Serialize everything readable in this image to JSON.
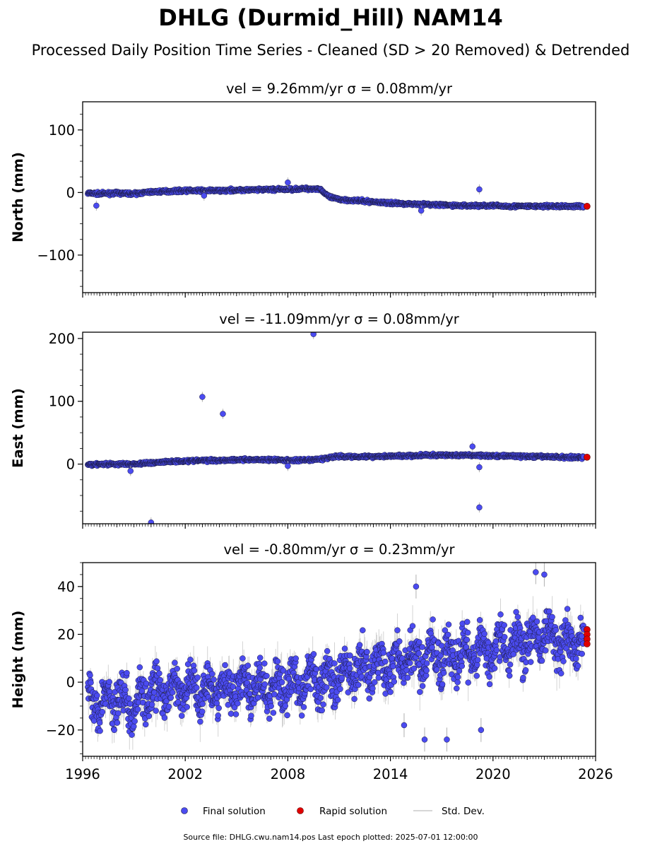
{
  "figure": {
    "title": "DHLG (Durmid_Hill) NAM14",
    "subtitle": "Processed Daily Position Time Series - Cleaned (SD > 20 Removed) & Detrended",
    "footer": "Source file: DHLG.cwu.nam14.pos  Last epoch plotted: 2025-07-01 12:00:00"
  },
  "legend": {
    "final_label": "Final solution",
    "rapid_label": "Rapid solution",
    "std_label": "Std. Dev."
  },
  "colors": {
    "final": "#4b4bf0",
    "final_edge": "#1a1a40",
    "rapid": "#e00000",
    "std": "#b0b0b0"
  },
  "chart_data": [
    {
      "type": "scatter",
      "title": "vel = 9.26mm/yr   σ = 0.08mm/yr",
      "ylabel": "North (mm)",
      "xlim": [
        1996,
        2026
      ],
      "ylim": [
        -160,
        145
      ],
      "yticks": [
        100,
        0,
        -100
      ],
      "ytick_labels": [
        "100",
        "0",
        "−100"
      ],
      "series": [
        {
          "name": "Final solution",
          "x": [
            1996.3,
            1997.0,
            1998.0,
            1999.0,
            2000.0,
            2001.0,
            2002.0,
            2003.0,
            2004.0,
            2005.0,
            2006.0,
            2007.0,
            2008.0,
            2009.0,
            2009.9,
            2010.2,
            2010.5,
            2011.0,
            2012.0,
            2013.0,
            2014.0,
            2015.0,
            2016.0,
            2017.0,
            2018.0,
            2019.0,
            2020.0,
            2021.0,
            2022.0,
            2023.0,
            2024.0,
            2025.3
          ],
          "y": [
            -1,
            -2,
            -1,
            -2,
            1,
            2,
            3,
            3,
            3,
            4,
            4,
            5,
            5,
            6,
            6,
            -3,
            -8,
            -11,
            -13,
            -15,
            -17,
            -18,
            -19,
            -20,
            -21,
            -21,
            -21,
            -22,
            -22,
            -22,
            -22,
            -22
          ]
        },
        {
          "name": "Rapid solution",
          "x": [
            2025.5
          ],
          "y": [
            -22
          ]
        }
      ],
      "outliers": {
        "x": [
          1996.8,
          2003.1,
          2008.0,
          2019.2,
          2015.8
        ],
        "y": [
          -21,
          -5,
          16,
          5,
          -29
        ]
      },
      "xticks": [
        1996,
        2002,
        2008,
        2014,
        2020,
        2026
      ],
      "xtick_labels": []
    },
    {
      "type": "scatter",
      "title": "vel = -11.09mm/yr   σ = 0.08mm/yr",
      "ylabel": "East (mm)",
      "xlim": [
        1996,
        2026
      ],
      "ylim": [
        -95,
        210
      ],
      "yticks": [
        200,
        100,
        0
      ],
      "ytick_labels": [
        "200",
        "100",
        "0"
      ],
      "series": [
        {
          "name": "Final solution",
          "x": [
            1996.3,
            1997.0,
            1998.0,
            1999.0,
            2000.0,
            2001.0,
            2002.0,
            2003.0,
            2004.0,
            2005.0,
            2006.0,
            2007.0,
            2008.0,
            2009.0,
            2010.0,
            2010.5,
            2011.0,
            2012.0,
            2013.0,
            2014.0,
            2015.0,
            2016.0,
            2017.0,
            2018.0,
            2019.0,
            2020.0,
            2021.0,
            2022.0,
            2023.0,
            2024.0,
            2025.3
          ],
          "y": [
            -1,
            0,
            0,
            0,
            2,
            4,
            5,
            6,
            6,
            7,
            7,
            7,
            6,
            6,
            8,
            11,
            12,
            12,
            12,
            13,
            13,
            14,
            14,
            14,
            14,
            13,
            13,
            12,
            12,
            11,
            11
          ]
        },
        {
          "name": "Rapid solution",
          "x": [
            2025.5
          ],
          "y": [
            11
          ]
        }
      ],
      "outliers": {
        "x": [
          1998.8,
          2000.0,
          2003.0,
          2004.2,
          2009.5,
          2019.2,
          2019.2,
          2018.8,
          2008.0
        ],
        "y": [
          -11,
          -93,
          107,
          80,
          207,
          -5,
          -69,
          28,
          -3
        ]
      },
      "xticks": [
        1996,
        2002,
        2008,
        2014,
        2020,
        2026
      ],
      "xtick_labels": []
    },
    {
      "type": "scatter",
      "title": "vel = -0.80mm/yr   σ = 0.23mm/yr",
      "ylabel": "Height (mm)",
      "xlim": [
        1996,
        2026
      ],
      "ylim": [
        -31,
        50
      ],
      "yticks": [
        40,
        20,
        0,
        -20
      ],
      "ytick_labels": [
        "40",
        "20",
        "0",
        "−20"
      ],
      "series": [
        {
          "name": "Final solution",
          "x": [
            1996.3,
            1997.0,
            1998.0,
            1999.0,
            2000.0,
            2001.0,
            2002.0,
            2003.0,
            2004.0,
            2005.0,
            2006.0,
            2007.0,
            2008.0,
            2009.0,
            2010.0,
            2011.0,
            2012.0,
            2013.0,
            2014.0,
            2015.0,
            2016.0,
            2017.0,
            2018.0,
            2019.0,
            2020.0,
            2021.0,
            2022.0,
            2023.0,
            2024.0,
            2025.3
          ],
          "y": [
            -5,
            -8,
            -6,
            -9,
            -5,
            -4,
            -3,
            -3,
            -2,
            -2,
            -2,
            -3,
            -1,
            0,
            1,
            3,
            5,
            6,
            7,
            9,
            11,
            10,
            11,
            12,
            14,
            15,
            17,
            19,
            18,
            18
          ]
        },
        {
          "name": "Rapid solution",
          "x": [
            2025.5,
            2025.5,
            2025.5,
            2025.5
          ],
          "y": [
            22,
            20,
            18,
            16
          ]
        }
      ],
      "outliers": {
        "x": [
          2015.5,
          2016.0,
          2017.3,
          2022.5,
          2023.0,
          2014.8,
          2019.3
        ],
        "y": [
          40,
          -24,
          -24,
          46,
          45,
          -18,
          -20
        ]
      },
      "xticks": [
        1996,
        2002,
        2008,
        2014,
        2020,
        2026
      ],
      "xtick_labels": [
        "1996",
        "2002",
        "2008",
        "2014",
        "2020",
        "2026"
      ]
    }
  ]
}
